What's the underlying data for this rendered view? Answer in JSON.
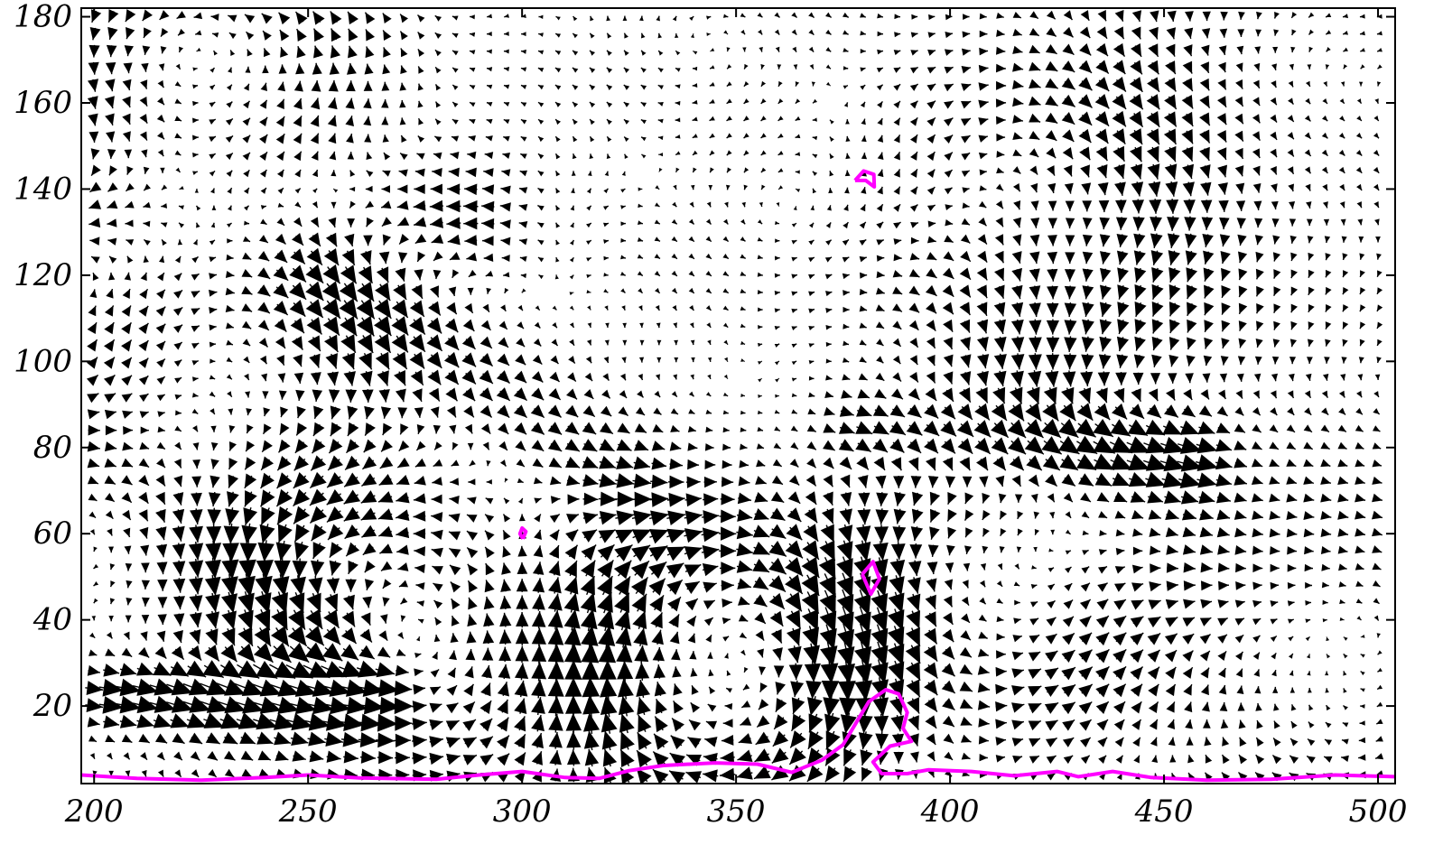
{
  "chart_data": {
    "type": "quiver",
    "title": "",
    "xlabel": "",
    "ylabel": "",
    "xlim": [
      197,
      504
    ],
    "ylim": [
      2,
      182
    ],
    "xticks": [
      200,
      250,
      300,
      350,
      400,
      450,
      500
    ],
    "yticks": [
      20,
      40,
      60,
      80,
      100,
      120,
      140,
      160,
      180
    ],
    "grid": false,
    "colors": {
      "axes": "#000000",
      "vectors": "#000000",
      "contour": "#ff00ff",
      "background": "#ffffff"
    },
    "vector_grid": {
      "x_start": 200,
      "x_end": 500,
      "x_step": 4,
      "y_start": 4,
      "y_end": 180,
      "y_step": 4
    },
    "vortices": [
      {
        "x": 228,
        "y": 166,
        "sign": 1,
        "strength": 1.0
      },
      {
        "x": 230,
        "y": 95,
        "sign": -1,
        "strength": 0.9
      },
      {
        "x": 295,
        "y": 40,
        "sign": 1,
        "strength": 0.6
      },
      {
        "x": 345,
        "y": 30,
        "sign": -1,
        "strength": 1.5
      },
      {
        "x": 410,
        "y": 48,
        "sign": 1,
        "strength": 1.0
      },
      {
        "x": 425,
        "y": 130,
        "sign": -1,
        "strength": 0.8
      },
      {
        "x": 490,
        "y": 30,
        "sign": -1,
        "strength": 0.8
      },
      {
        "x": 260,
        "y": 35,
        "sign": 1,
        "strength": 0.8
      }
    ],
    "jets": [
      {
        "x0": 200,
        "y0": 134,
        "x1": 285,
        "y1": 134,
        "width": 12,
        "strength": -3.2
      },
      {
        "x0": 255,
        "y0": 122,
        "x1": 320,
        "y1": 74,
        "width": 12,
        "strength": 3.0
      },
      {
        "x0": 205,
        "y0": 22,
        "x1": 265,
        "y1": 22,
        "width": 6,
        "strength": 4.0
      },
      {
        "x0": 200,
        "y0": 78,
        "x1": 250,
        "y1": 40,
        "width": 12,
        "strength": 3.5
      },
      {
        "x0": 380,
        "y0": 84,
        "x1": 455,
        "y1": 78,
        "width": 8,
        "strength": 3.5
      },
      {
        "x0": 400,
        "y0": 115,
        "x1": 450,
        "y1": 55,
        "width": 16,
        "strength": 3.0
      },
      {
        "x0": 445,
        "y0": 185,
        "x1": 445,
        "y1": 115,
        "width": 30,
        "strength": 1.2
      }
    ],
    "contours": [
      {
        "name": "bottom-boundary",
        "points": [
          [
            197,
            4
          ],
          [
            210,
            3.2
          ],
          [
            225,
            2.8
          ],
          [
            240,
            3.4
          ],
          [
            250,
            4
          ],
          [
            262,
            3.3
          ],
          [
            280,
            3
          ],
          [
            290,
            4
          ],
          [
            300,
            4.8
          ],
          [
            310,
            3.4
          ],
          [
            318,
            3.2
          ],
          [
            325,
            5
          ],
          [
            333,
            6.2
          ],
          [
            345,
            6.8
          ],
          [
            355,
            6.5
          ],
          [
            363,
            4.6
          ],
          [
            370,
            7.4
          ],
          [
            375,
            11
          ],
          [
            378,
            16
          ],
          [
            381,
            21
          ],
          [
            385,
            23.8
          ],
          [
            388,
            22.8
          ],
          [
            390,
            18.5
          ],
          [
            389,
            14.8
          ],
          [
            391,
            11.8
          ],
          [
            386,
            10.7
          ],
          [
            382,
            7
          ],
          [
            384,
            4.3
          ],
          [
            390,
            4.3
          ],
          [
            395,
            5.2
          ],
          [
            405,
            4.8
          ],
          [
            415,
            3.8
          ],
          [
            425,
            4.8
          ],
          [
            430,
            3.6
          ],
          [
            438,
            4.8
          ],
          [
            447,
            3.4
          ],
          [
            460,
            2.8
          ],
          [
            475,
            3
          ],
          [
            490,
            4
          ],
          [
            504,
            3.6
          ]
        ]
      },
      {
        "name": "small-loop-60",
        "points": [
          [
            300.2,
            58.8
          ],
          [
            299.5,
            60
          ],
          [
            300,
            61.3
          ],
          [
            300.9,
            60.5
          ],
          [
            300.2,
            58.8
          ]
        ]
      },
      {
        "name": "small-loop-142",
        "points": [
          [
            377.8,
            142
          ],
          [
            379.8,
            144.2
          ],
          [
            382.2,
            143.4
          ],
          [
            382.3,
            140.5
          ],
          [
            380.3,
            142
          ],
          [
            377.8,
            142
          ]
        ]
      },
      {
        "name": "small-loop-50",
        "points": [
          [
            379.5,
            50.6
          ],
          [
            382,
            53.5
          ],
          [
            383.5,
            49.5
          ],
          [
            381.5,
            46
          ],
          [
            379.5,
            50.6
          ]
        ]
      }
    ]
  }
}
